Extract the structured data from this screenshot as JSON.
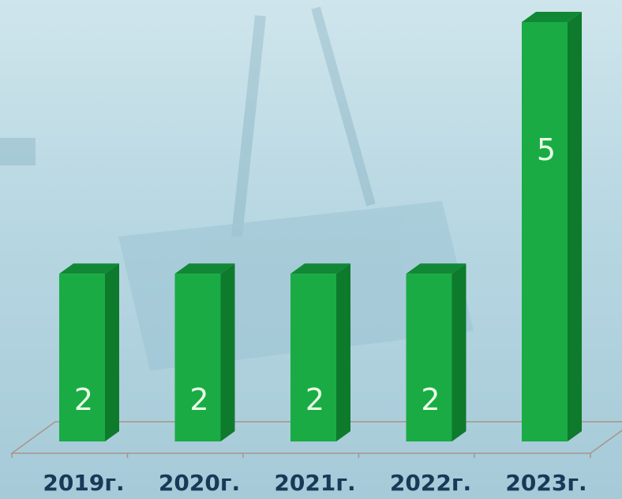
{
  "chart_data": {
    "type": "bar",
    "title": "",
    "xlabel": "",
    "ylabel": "",
    "categories": [
      "2019г.",
      "2020г.",
      "2021г.",
      "2022г.",
      "2023г."
    ],
    "values": [
      2,
      2,
      2,
      2,
      5
    ],
    "data_labels": [
      "2",
      "2",
      "2",
      "2",
      "5"
    ],
    "ylim": [
      0,
      5
    ],
    "grid": false,
    "legend": "none",
    "three_d": true,
    "bar_color": "#1aab45",
    "bar_side_color": "#0e7a2c",
    "bar_top_color": "#118836",
    "label_color": "#e9ffe5",
    "tick_label_color": "#163a57",
    "floor_line_color": "#a8948a"
  }
}
